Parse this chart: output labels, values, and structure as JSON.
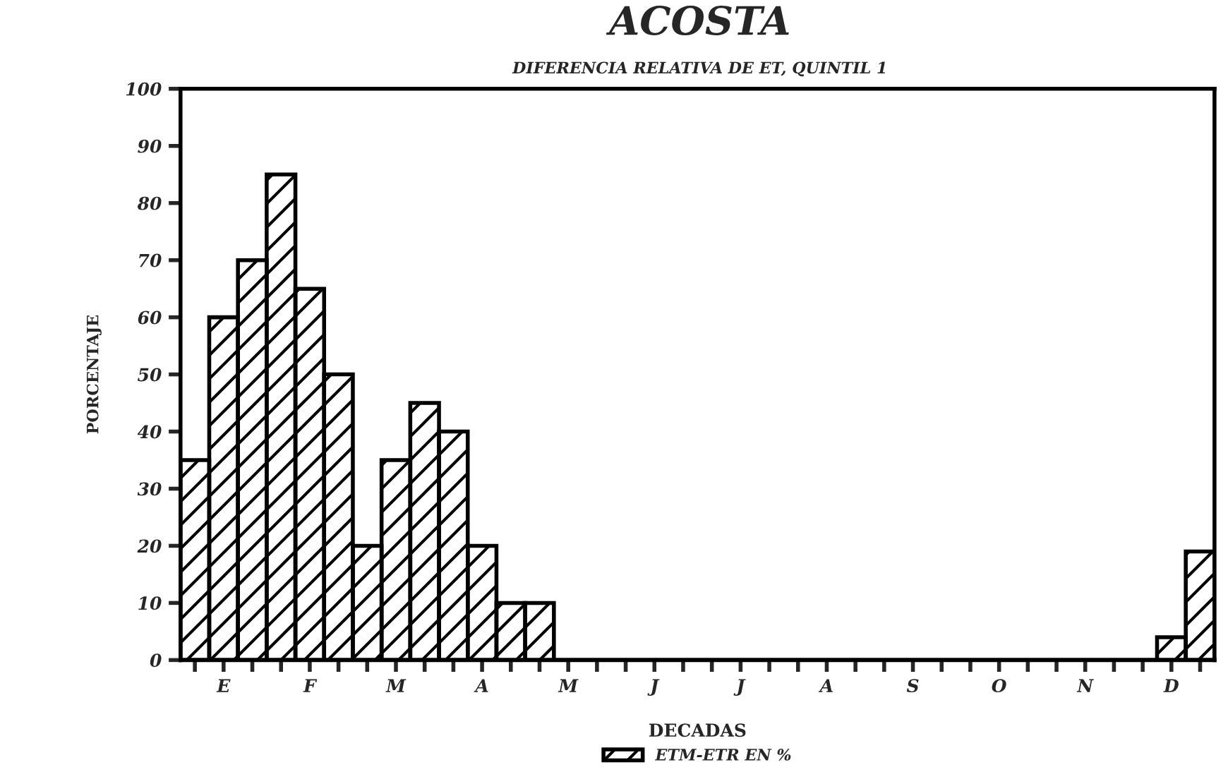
{
  "chart_data": {
    "type": "bar",
    "title": "ACOSTA",
    "subtitle": "DIFERENCIA RELATIVA DE ET, QUINTIL 1",
    "xlabel": "DECADAS",
    "ylabel": "PORCENTAJE",
    "categories": [
      null,
      "E",
      null,
      null,
      "F",
      null,
      null,
      "M",
      null,
      null,
      "A",
      null,
      null,
      "M",
      null,
      null,
      "J",
      null,
      null,
      "J",
      null,
      null,
      "A",
      null,
      null,
      "S",
      null,
      null,
      "O",
      null,
      null,
      "N",
      null,
      null,
      "D",
      null
    ],
    "series": [
      {
        "name": "ETM-ETR EN %",
        "color": "#000000",
        "values": [
          35,
          60,
          70,
          85,
          65,
          50,
          20,
          35,
          45,
          40,
          20,
          10,
          10,
          0,
          0,
          0,
          0,
          0,
          0,
          0,
          0,
          0,
          0,
          0,
          0,
          0,
          0,
          0,
          0,
          0,
          0,
          0,
          0,
          0,
          4,
          19
        ]
      }
    ],
    "ylim": [
      0,
      100
    ],
    "yticks": [
      0,
      10,
      20,
      30,
      40,
      50,
      60,
      70,
      80,
      90,
      100
    ],
    "grid": false,
    "legend": "bottom"
  }
}
